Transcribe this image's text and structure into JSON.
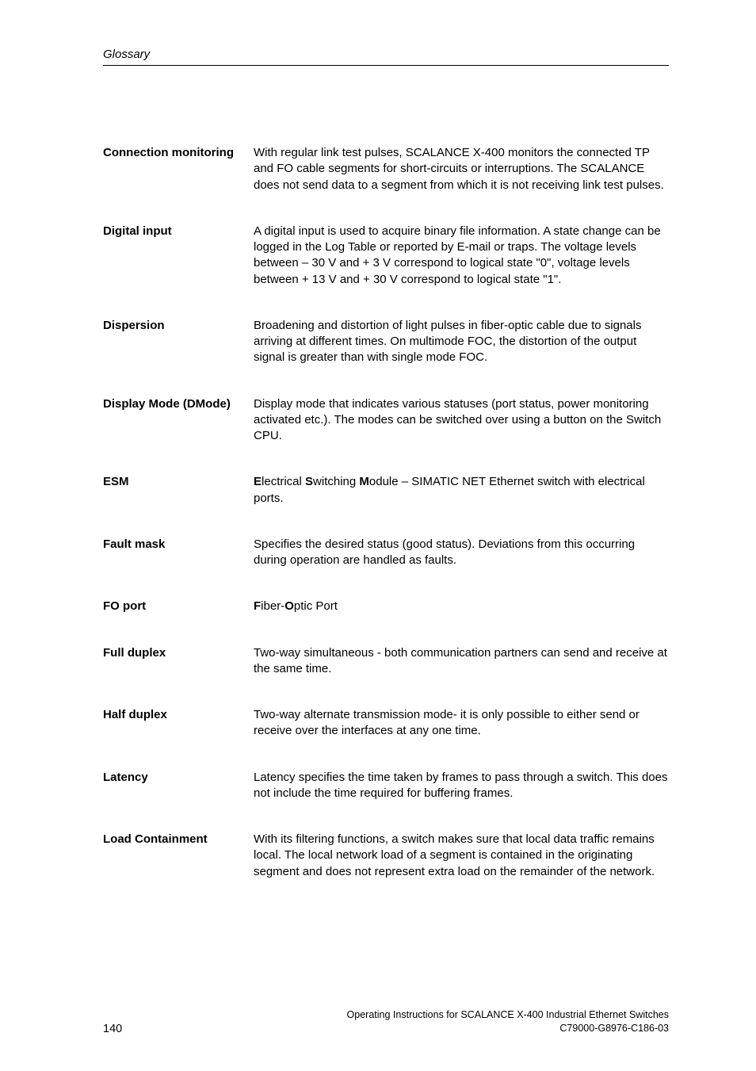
{
  "header": {
    "title": "Glossary"
  },
  "entries": [
    {
      "term": "Connection monitor­ing",
      "definition": "With regular link test pulses, SCALANCE X-400 monitors the con­nected TP and FO cable segments for short-circuits or interruptions. The SCALANCE does not send data to a segment from which it is not receiving link test pulses.",
      "gap_after": 38
    },
    {
      "term": "Digital input",
      "definition": "A digital input is used to acquire binary file information. A state change can be logged in the Log Table or reported by E-mail or traps. The voltage levels between – 30 V and + 3 V correspond to logical state \"0\", voltage levels between + 13 V and + 30 V correspond to logical state \"1\".",
      "gap_after": 38
    },
    {
      "term": "Dispersion",
      "definition": "Broadening and distortion of light pulses in fiber-optic cable due to signals arriving at different times. On multimode FOC, the distortion of the output signal is greater than with single mode FOC.",
      "gap_after": 38
    },
    {
      "term": "Display Mode (DMode)",
      "definition": "Display mode that indicates various statuses (port status, power moni­toring activated etc.). The modes can be switched over using a button on the Switch CPU.",
      "gap_after": 38
    },
    {
      "term": "ESM",
      "definition": "<b>E</b>lectrical <b>S</b>witching <b>M</b>odule – SIMATIC NET Ethernet switch with elec­trical ports.",
      "gap_after": 38,
      "html": true
    },
    {
      "term": "Fault mask",
      "definition": "Specifies the desired status (good status). Deviations from this occur­ring during operation are handled as faults.",
      "gap_after": 38
    },
    {
      "term": "FO port",
      "definition": "<b>F</b>iber-<b>O</b>ptic Port",
      "gap_after": 38,
      "html": true
    },
    {
      "term": "Full duplex",
      "definition": "Two-way simultaneous - both communication partners can send and receive at the same time.",
      "gap_after": 38
    },
    {
      "term": "Half duplex",
      "definition": "Two-way alternate transmission mode- it is only possible to either send or receive over the interfaces at any one time.",
      "gap_after": 38
    },
    {
      "term": "Latency",
      "definition": "Latency specifies the time taken by frames to pass through a switch. This does not include the time required for buffering frames.",
      "gap_after": 38
    },
    {
      "term": "Load Containment",
      "definition": "With its filtering functions, a switch makes sure that local data traffic remains local. The local network load of a segment is contained in the originating segment and does not represent extra load on the remain­der of the network.",
      "gap_after": 0
    }
  ],
  "footer": {
    "page": "140",
    "line1": "Operating Instructions for SCALANCE X-400 Industrial Ethernet Switches",
    "line2": "C79000-G8976-C186-03"
  }
}
